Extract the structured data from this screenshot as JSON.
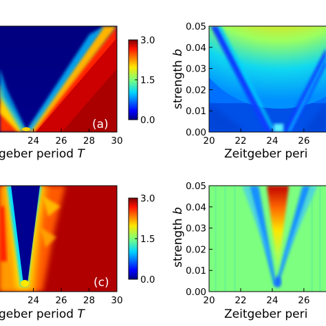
{
  "chart_data": [
    {
      "type": "heatmap",
      "panel_label": "(a)",
      "xlabel_prefix": "geber period ",
      "xlabel_var": "T",
      "x_ticks": [
        "24",
        "26",
        "28",
        "30"
      ],
      "x_tick_values": [
        24,
        26,
        28,
        30
      ],
      "xlim": [
        21.6,
        30
      ],
      "y_ticks": [],
      "colorbar": {
        "ticks": [
          "0.0",
          "1.5",
          "3.0"
        ],
        "tick_values": [
          0,
          1.5,
          3
        ],
        "range": [
          0,
          3
        ]
      },
      "description_shape": "V-shaped high-value region opening upward from about T=24, high values (red) at the bottom"
    },
    {
      "type": "heatmap",
      "panel_label": "",
      "xlabel": "Zeitgeber peri",
      "ylabel_prefix": "strength ",
      "ylabel_var": "b",
      "x_ticks": [
        "20",
        "22",
        "24",
        "26"
      ],
      "x_tick_values": [
        20,
        22,
        24,
        26
      ],
      "xlim": [
        20,
        27.4
      ],
      "y_ticks": [
        "0.00",
        "0.01",
        "0.02",
        "0.03",
        "0.04",
        "0.05"
      ],
      "y_tick_values": [
        0,
        0.01,
        0.02,
        0.03,
        0.04,
        0.05
      ],
      "ylim": [
        0,
        0.05
      ]
    },
    {
      "type": "heatmap",
      "panel_label": "(c)",
      "xlabel_prefix": "geber period ",
      "xlabel_var": "T",
      "x_ticks": [
        "24",
        "26",
        "28",
        "30"
      ],
      "x_tick_values": [
        24,
        26,
        28,
        30
      ],
      "xlim": [
        21.6,
        30
      ],
      "y_ticks": [],
      "colorbar": {
        "ticks": [
          "0.0",
          "1.5",
          "3.0"
        ],
        "tick_values": [
          0,
          1.5,
          3
        ],
        "range": [
          0,
          3
        ]
      }
    },
    {
      "type": "heatmap",
      "panel_label": "",
      "xlabel": "Zeitgeber peri",
      "ylabel_prefix": "strength ",
      "ylabel_var": "b",
      "x_ticks": [
        "20",
        "22",
        "24",
        "26"
      ],
      "x_tick_values": [
        20,
        22,
        24,
        26
      ],
      "xlim": [
        20,
        27.4
      ],
      "y_ticks": [
        "0.00",
        "0.01",
        "0.02",
        "0.03",
        "0.04",
        "0.05"
      ],
      "y_tick_values": [
        0,
        0.01,
        0.02,
        0.03,
        0.04,
        0.05
      ],
      "ylim": [
        0,
        0.05
      ]
    }
  ]
}
